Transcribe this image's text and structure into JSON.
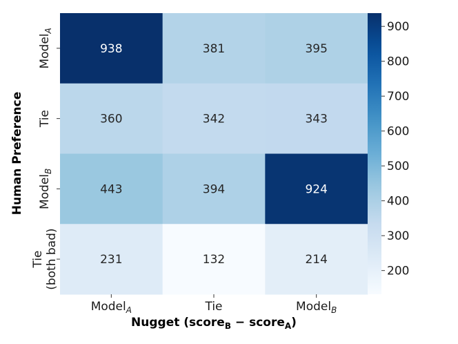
{
  "chart_data": {
    "type": "heatmap",
    "title": "",
    "xlabel": {
      "prefix": "Nugget (score",
      "sub1": "B",
      "minus": " − score",
      "sub2": "A",
      "suffix": ")"
    },
    "ylabel": "Human Preference",
    "x_categories": [
      {
        "base": "Model",
        "sub": "A"
      },
      {
        "base": "Tie",
        "sub": ""
      },
      {
        "base": "Model",
        "sub": "B"
      }
    ],
    "y_categories": [
      {
        "lines": [
          "Model"
        ],
        "sub": "A"
      },
      {
        "lines": [
          "Tie"
        ],
        "sub": ""
      },
      {
        "lines": [
          "Model"
        ],
        "sub": "B"
      },
      {
        "lines": [
          "Tie",
          "(both bad)"
        ],
        "sub": ""
      }
    ],
    "values": [
      [
        938,
        381,
        395
      ],
      [
        360,
        342,
        343
      ],
      [
        443,
        394,
        924
      ],
      [
        231,
        132,
        214
      ]
    ],
    "colorbar": {
      "colormap": "Blues",
      "vmin": 132,
      "vmax": 938,
      "ticks": [
        200,
        300,
        400,
        500,
        600,
        700,
        800,
        900
      ]
    }
  }
}
